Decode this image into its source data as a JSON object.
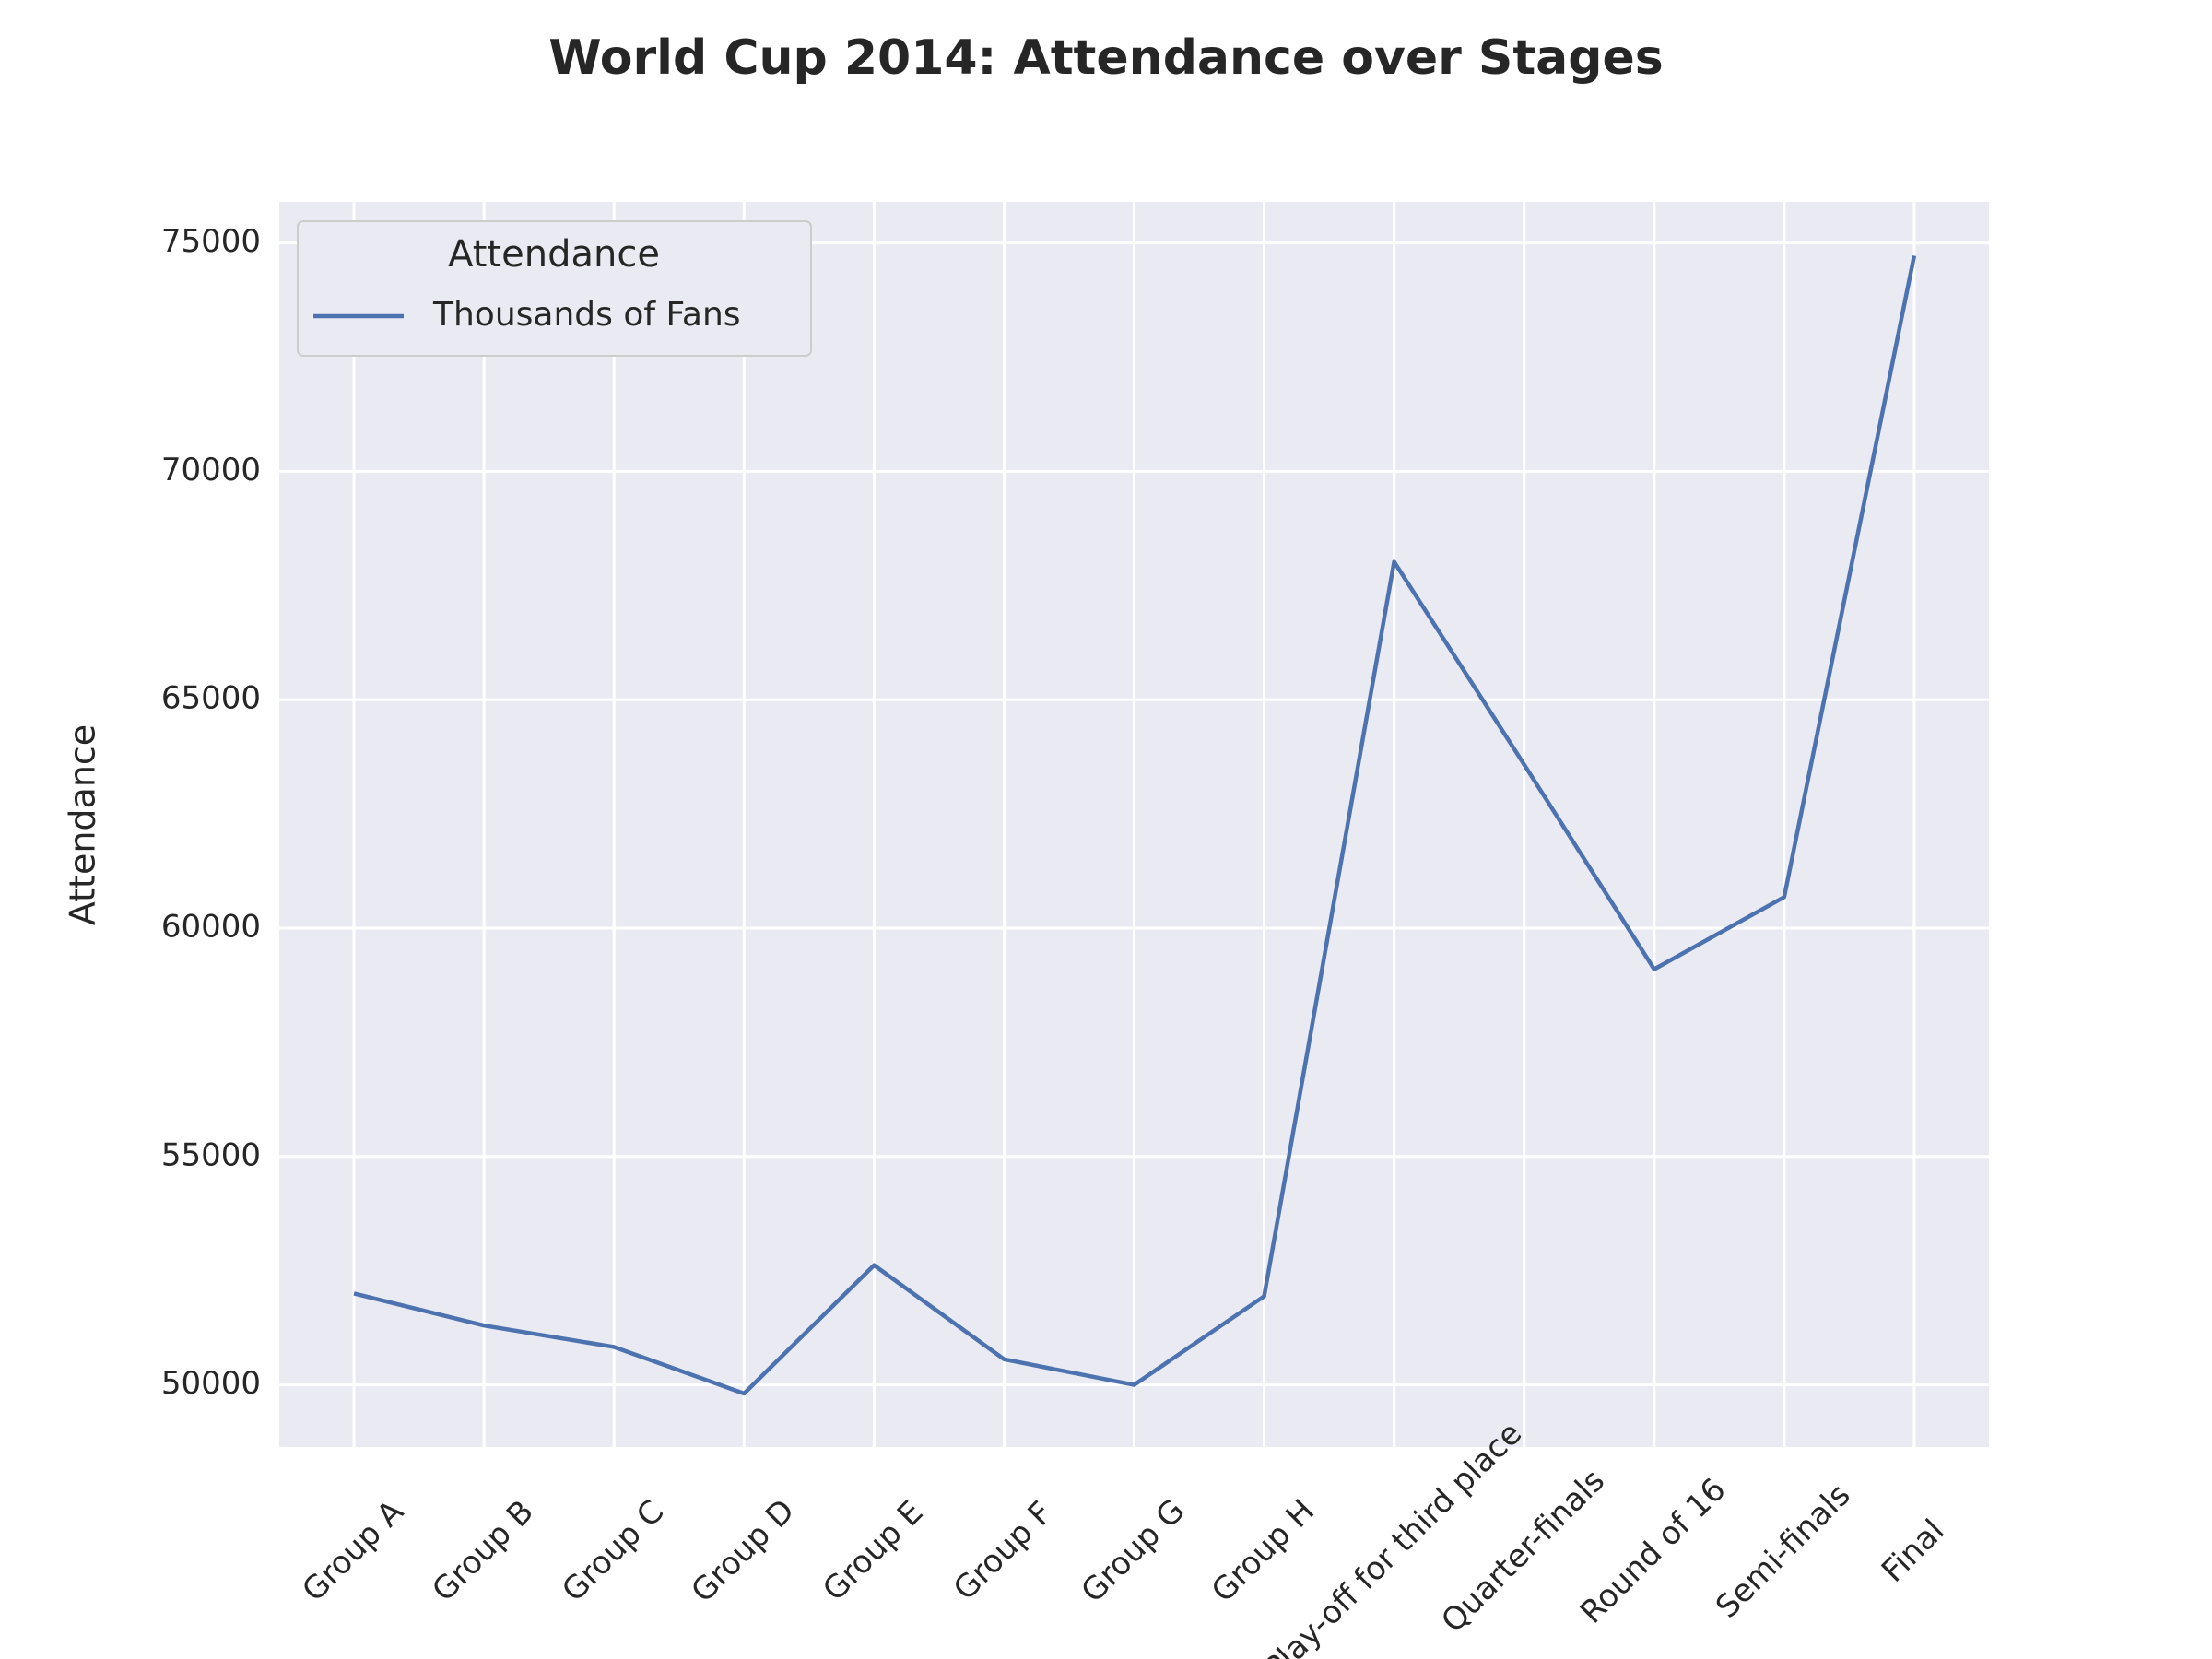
{
  "chart_data": {
    "type": "line",
    "title": "World Cup 2014: Attendance over Stages",
    "y_label": "Attendance",
    "legend_title": "Attendance",
    "legend_position": "upper left",
    "grid": true,
    "categories": [
      "Group A",
      "Group B",
      "Group C",
      "Group D",
      "Group E",
      "Group F",
      "Group G",
      "Group H",
      "Play-off for third place",
      "Quarter-finals",
      "Round of 16",
      "Semi-finals",
      "Final"
    ],
    "series": [
      {
        "name": "Thousands of Fans",
        "color": "#4c72b0",
        "values": [
          52000,
          51300,
          50830,
          49810,
          52620,
          50560,
          50000,
          51940,
          68020,
          63580,
          59100,
          60680,
          74720
        ]
      }
    ],
    "ylim": [
      48640,
      75900
    ],
    "yticks": [
      50000,
      55000,
      60000,
      65000,
      70000,
      75000
    ]
  }
}
